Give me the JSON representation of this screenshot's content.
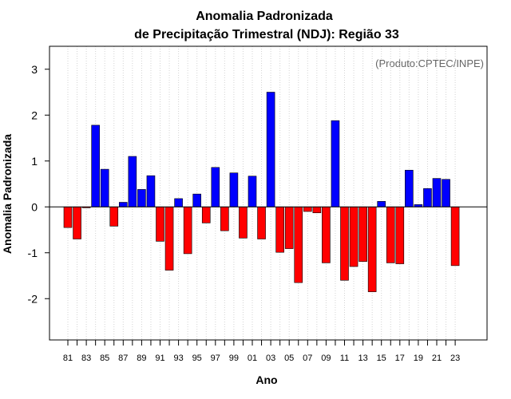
{
  "chart_data": {
    "type": "bar",
    "title": "Anomalia Padronizada",
    "subtitle": "de Precipitação Trimestral (NDJ): Região 33",
    "xlabel": "Ano",
    "ylabel": "Anomalia Padronizada",
    "annotation": "(Produto:CPTEC/INPE)",
    "ylim": [
      -2.9,
      3.5
    ],
    "yticks": [
      -2,
      -1,
      0,
      1,
      2,
      3
    ],
    "grid": "vertical dotted",
    "categories": [
      "1981",
      "1982",
      "1983",
      "1984",
      "1985",
      "1986",
      "1987",
      "1988",
      "1989",
      "1990",
      "1991",
      "1992",
      "1993",
      "1994",
      "1995",
      "1996",
      "1997",
      "1998",
      "1999",
      "2000",
      "2001",
      "2002",
      "2003",
      "2004",
      "2005",
      "2006",
      "2007",
      "2008",
      "2009",
      "2010",
      "2011",
      "2012",
      "2013",
      "2014",
      "2015",
      "2016",
      "2017",
      "2018",
      "2019",
      "2020",
      "2021",
      "2022",
      "2023"
    ],
    "xtick_labels": [
      "81",
      "83",
      "85",
      "87",
      "89",
      "91",
      "93",
      "95",
      "97",
      "99",
      "01",
      "03",
      "05",
      "07",
      "09",
      "11",
      "13",
      "15",
      "17",
      "19",
      "21",
      "23"
    ],
    "values": [
      -0.45,
      -0.7,
      -0.02,
      1.78,
      0.82,
      -0.42,
      0.1,
      1.1,
      0.38,
      0.68,
      -0.75,
      -1.38,
      0.18,
      -1.02,
      0.28,
      -0.35,
      0.86,
      -0.52,
      0.74,
      -0.68,
      0.67,
      -0.7,
      2.5,
      -0.99,
      -0.91,
      -1.65,
      -0.1,
      -0.13,
      -1.22,
      1.88,
      -1.6,
      -1.3,
      -1.19,
      -1.85,
      0.12,
      -1.22,
      -1.24,
      0.8,
      0.05,
      0.4,
      0.62,
      0.6,
      -1.28
    ],
    "colors": {
      "positive": "#0000ff",
      "negative": "#ff0000",
      "zero_line": "#000000",
      "grid": "#d3d3d3",
      "bar_outline": "#000000",
      "frame": "#000000",
      "annotation": "#666666"
    }
  }
}
